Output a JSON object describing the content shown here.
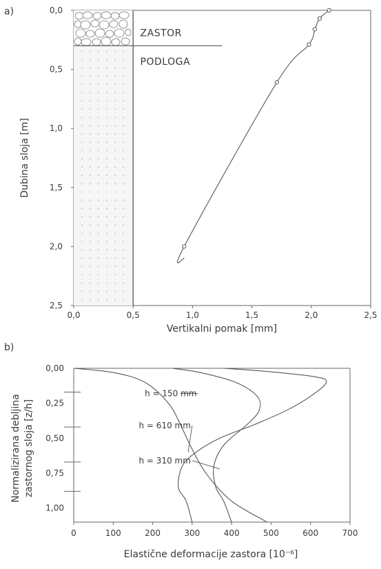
{
  "chart_data": [
    {
      "panel": "a)",
      "type": "line",
      "xlabel": "Vertikalni pomak [mm]",
      "ylabel": "Dubina sloja [m]",
      "xlim": [
        0.0,
        2.5
      ],
      "ylim": [
        0.0,
        2.5
      ],
      "y_inverted": true,
      "xticks": [
        "0,0",
        "0,5",
        "1,0",
        "1,5",
        "2,0",
        "2,5"
      ],
      "yticks": [
        "0,0",
        "0,5",
        "1,0",
        "1,5",
        "2,0",
        "2,5"
      ],
      "layers": [
        {
          "name": "ZASTOR",
          "depth_from": 0.0,
          "depth_to": 0.3
        },
        {
          "name": "PODLOGA",
          "depth_from": 0.3,
          "depth_to": 2.5
        }
      ],
      "layer_block_width": 0.5,
      "series": [
        {
          "points": [
            {
              "x": 2.15,
              "y": 0.0
            },
            {
              "x": 2.07,
              "y": 0.07
            },
            {
              "x": 2.03,
              "y": 0.16
            },
            {
              "x": 1.98,
              "y": 0.29
            },
            {
              "x": 1.71,
              "y": 0.61
            },
            {
              "x": 0.93,
              "y": 2.0
            }
          ],
          "curve_end": {
            "x": 0.93,
            "y": 2.1
          }
        }
      ],
      "grid": false
    },
    {
      "panel": "b)",
      "type": "line",
      "xlabel": "Elastične deformacije zastora [10⁻⁶]",
      "ylabel_lines": [
        "Normalizirana debljina",
        "zastornog sloja [z/h]"
      ],
      "xlim": [
        0,
        700
      ],
      "ylim": [
        0.0,
        1.1
      ],
      "y_inverted": true,
      "xticks": [
        "0",
        "100",
        "200",
        "300",
        "400",
        "500",
        "600",
        "700"
      ],
      "yticks": [
        "0,00",
        "0,25",
        "0,50",
        "0,75",
        "1,00"
      ],
      "series": [
        {
          "name": "h = 150 mm",
          "points": [
            [
              0,
              0
            ],
            [
              100,
              0.03
            ],
            [
              180,
              0.1
            ],
            [
              240,
              0.25
            ],
            [
              270,
              0.4
            ],
            [
              295,
              0.55
            ],
            [
              335,
              0.75
            ],
            [
              400,
              0.95
            ],
            [
              490,
              1.1
            ]
          ]
        },
        {
          "name": "h = 610 mm",
          "points": [
            [
              250,
              0
            ],
            [
              320,
              0.03
            ],
            [
              410,
              0.1
            ],
            [
              465,
              0.2
            ],
            [
              470,
              0.3
            ],
            [
              440,
              0.4
            ],
            [
              380,
              0.55
            ],
            [
              355,
              0.7
            ],
            [
              360,
              0.85
            ],
            [
              380,
              0.95
            ],
            [
              400,
              1.1
            ]
          ]
        },
        {
          "name": "h = 310 mm",
          "points": [
            [
              380,
              0
            ],
            [
              480,
              0.02
            ],
            [
              610,
              0.06
            ],
            [
              640,
              0.1
            ],
            [
              600,
              0.2
            ],
            [
              540,
              0.3
            ],
            [
              460,
              0.4
            ],
            [
              370,
              0.5
            ],
            [
              310,
              0.6
            ],
            [
              275,
              0.7
            ],
            [
              265,
              0.85
            ],
            [
              285,
              0.95
            ],
            [
              300,
              1.1
            ]
          ]
        }
      ],
      "grid": false
    }
  ]
}
